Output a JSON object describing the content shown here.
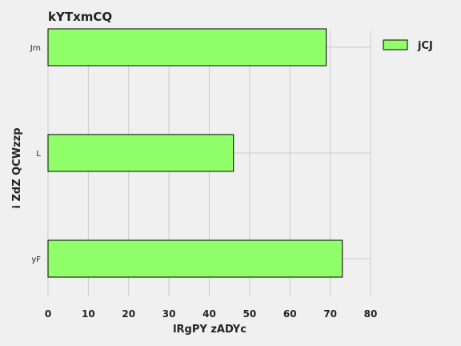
{
  "chart_data": {
    "type": "bar",
    "orientation": "horizontal",
    "title": "kYTxmCQ",
    "xlabel": "lRgPY zADYc",
    "ylabel": "i ZdZ QCWzzp",
    "categories": [
      "Jrn",
      "L",
      "yF"
    ],
    "series": [
      {
        "name": "jCJ",
        "values": [
          69,
          46,
          73
        ],
        "color": "#90ff6a"
      }
    ],
    "xlim": [
      0,
      80
    ],
    "xticks": [
      "0",
      "10",
      "20",
      "30",
      "40",
      "50",
      "60",
      "70",
      "80"
    ],
    "grid": true,
    "legend": "top-right",
    "background": "#f0f0f0",
    "grid_color": "#cbcbcb"
  }
}
